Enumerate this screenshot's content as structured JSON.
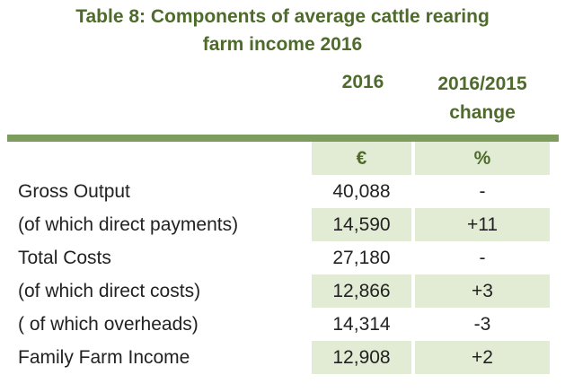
{
  "title": {
    "line1": "Table 8: Components of average cattle rearing",
    "line2": "farm income 2016"
  },
  "columns": {
    "year": "2016",
    "change_line1": "2016/2015",
    "change_line2": "change"
  },
  "units": {
    "value": "€",
    "change": "%"
  },
  "rows": [
    {
      "label": "Gross Output",
      "value": "40,088",
      "change": "-"
    },
    {
      "label": "(of which direct payments)",
      "value": "14,590",
      "change": "+11"
    },
    {
      "label": "Total Costs",
      "value": "27,180",
      "change": "-"
    },
    {
      "label": "(of which direct costs)",
      "value": "12,866",
      "change": "+3"
    },
    {
      "label": "( of which overheads)",
      "value": "14,314",
      "change": "-3"
    },
    {
      "label": "Family Farm Income",
      "value": "12,908",
      "change": "+2"
    }
  ],
  "colors": {
    "heading": "#4e6b2c",
    "rule": "#7c9d5d",
    "shade": "#e2ecd5"
  }
}
